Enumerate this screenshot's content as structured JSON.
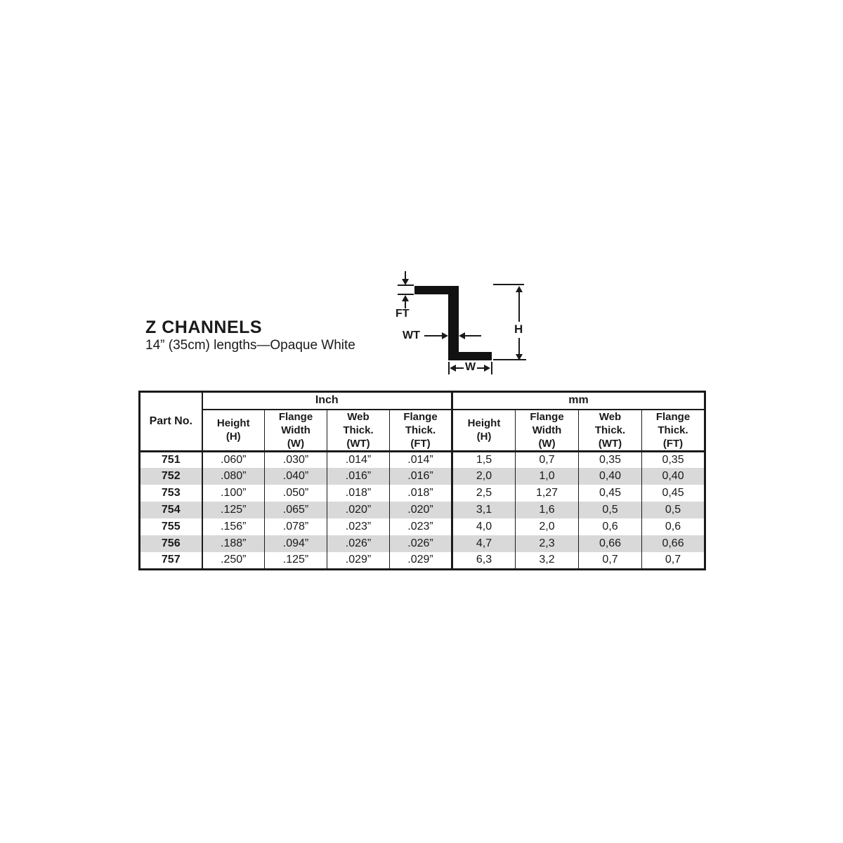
{
  "header": {
    "title": "Z CHANNELS",
    "subtitle": "14” (35cm) lengths—Opaque White"
  },
  "diagram": {
    "labels": {
      "ft": "FT",
      "wt": "WT",
      "h": "H",
      "w": "W"
    }
  },
  "table": {
    "part_no_header": "Part No.",
    "group_headers": {
      "inch": "Inch",
      "mm": "mm"
    },
    "sub_headers": [
      "Height\n(H)",
      "Flange\nWidth\n(W)",
      "Web\nThick.\n(WT)",
      "Flange\nThick.\n(FT)"
    ],
    "rows": [
      {
        "part_no": "751",
        "inch": [
          ".060”",
          ".030”",
          ".014”",
          ".014”"
        ],
        "mm": [
          "1,5",
          "0,7",
          "0,35",
          "0,35"
        ]
      },
      {
        "part_no": "752",
        "inch": [
          ".080”",
          ".040”",
          ".016”",
          ".016”"
        ],
        "mm": [
          "2,0",
          "1,0",
          "0,40",
          "0,40"
        ]
      },
      {
        "part_no": "753",
        "inch": [
          ".100”",
          ".050”",
          ".018”",
          ".018”"
        ],
        "mm": [
          "2,5",
          "1,27",
          "0,45",
          "0,45"
        ]
      },
      {
        "part_no": "754",
        "inch": [
          ".125”",
          ".065”",
          ".020”",
          ".020”"
        ],
        "mm": [
          "3,1",
          "1,6",
          "0,5",
          "0,5"
        ]
      },
      {
        "part_no": "755",
        "inch": [
          ".156”",
          ".078”",
          ".023”",
          ".023”"
        ],
        "mm": [
          "4,0",
          "2,0",
          "0,6",
          "0,6"
        ]
      },
      {
        "part_no": "756",
        "inch": [
          ".188”",
          ".094”",
          ".026”",
          ".026”"
        ],
        "mm": [
          "4,7",
          "2,3",
          "0,66",
          "0,66"
        ]
      },
      {
        "part_no": "757",
        "inch": [
          ".250”",
          ".125”",
          ".029”",
          ".029”"
        ],
        "mm": [
          "6,3",
          "3,2",
          "0,7",
          "0,7"
        ]
      }
    ],
    "colors": {
      "stripe": "#d9d9d9",
      "ink": "#1a1a1a",
      "shape": "#111111"
    }
  }
}
